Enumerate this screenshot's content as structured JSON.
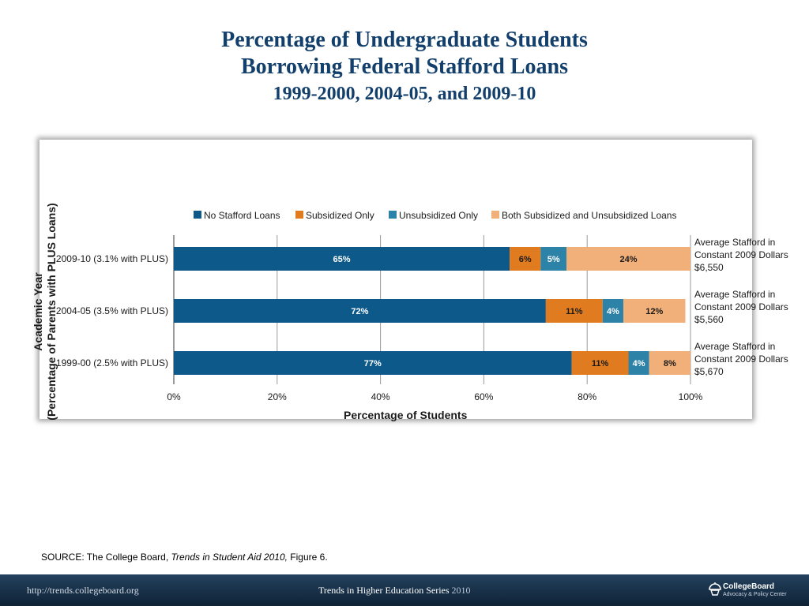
{
  "title": {
    "line1": "Percentage of Undergraduate Students",
    "line2": "Borrowing Federal Stafford Loans",
    "line3": "1999-2000, 2004-05, and 2009-10"
  },
  "colors": {
    "no_stafford": "#0d5a8a",
    "subsidized_only": "#e07b20",
    "unsubsidized_only": "#2d82a8",
    "both": "#f1b07a",
    "title": "#123f6b"
  },
  "chart_data": {
    "type": "bar",
    "orientation": "horizontal",
    "stacked": true,
    "categories": [
      "2009-10 (3.1% with PLUS)",
      "2004-05 (3.5% with PLUS)",
      "1999-00 (2.5% with PLUS)"
    ],
    "series": [
      {
        "name": "No Stafford Loans",
        "values": [
          65,
          72,
          77
        ],
        "labels": [
          "65%",
          "72%",
          "77%"
        ]
      },
      {
        "name": "Subsidized Only",
        "values": [
          6,
          11,
          11
        ],
        "labels": [
          "6%",
          "11%",
          "11%"
        ]
      },
      {
        "name": "Unsubsidized Only",
        "values": [
          5,
          4,
          4
        ],
        "labels": [
          "5%",
          "4%",
          "4%"
        ]
      },
      {
        "name": "Both Subsidized and Unsubsidized Loans",
        "values": [
          24,
          12,
          8
        ],
        "labels": [
          "24%",
          "12%",
          "8%"
        ]
      }
    ],
    "xlabel": "Percentage of Students",
    "ylabel_line1": "Academic Year",
    "ylabel_line2": "(Percentage of Parents with PLUS Loans)",
    "xlim": [
      0,
      100
    ],
    "xticks": [
      0,
      20,
      40,
      60,
      80,
      100
    ],
    "xtick_labels": [
      "0%",
      "20%",
      "40%",
      "60%",
      "80%",
      "100%"
    ],
    "grid": true,
    "legend_position": "top",
    "annotations": [
      {
        "line1": "Average Stafford in",
        "line2": "Constant 2009 Dollars",
        "line3": "$6,550"
      },
      {
        "line1": "Average Stafford in",
        "line2": "Constant 2009 Dollars",
        "line3": "$5,560"
      },
      {
        "line1": "Average Stafford in",
        "line2": "Constant 2009 Dollars",
        "line3": "$5,670"
      }
    ]
  },
  "source": {
    "prefix": "SOURCE: The College Board, ",
    "publication": "Trends in Student Aid 2010,",
    "suffix": " Figure 6."
  },
  "footer": {
    "url": "http://trends.collegeboard.org",
    "series": "Trends in Higher Education Series",
    "series_year": "2010",
    "logo_name": "CollegeBoard",
    "logo_sub": "Advocacy & Policy Center"
  }
}
